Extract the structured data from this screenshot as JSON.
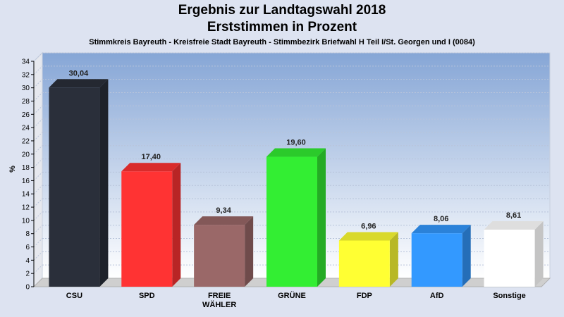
{
  "header": {
    "title_line1": "Ergebnis zur Landtagswahl 2018",
    "title_line2": "Erststimmen in Prozent",
    "subtitle": "Stimmkreis Bayreuth - Kreisfreie Stadt Bayreuth - Stimmbezirk Briefwahl H Teil I/St. Georgen und I (0084)"
  },
  "chart_data": {
    "type": "bar",
    "categories": [
      "CSU",
      "SPD",
      "FREIE WÄHLER",
      "GRÜNE",
      "FDP",
      "AfD",
      "Sonstige"
    ],
    "category_lines": [
      [
        "CSU"
      ],
      [
        "SPD"
      ],
      [
        "FREIE",
        "WÄHLER"
      ],
      [
        "GRÜNE"
      ],
      [
        "FDP"
      ],
      [
        "AfD"
      ],
      [
        "Sonstige"
      ]
    ],
    "values": [
      30.04,
      17.4,
      9.34,
      19.6,
      6.96,
      8.06,
      8.61
    ],
    "value_labels": [
      "30,04",
      "17,40",
      "9,34",
      "19,60",
      "6,96",
      "8,06",
      "8,61"
    ],
    "colors": [
      "#2a2f3a",
      "#ff3333",
      "#9a6868",
      "#33ee33",
      "#ffff33",
      "#3399ff",
      "#ffffff"
    ],
    "ylabel": "%",
    "ylim": [
      0,
      34
    ],
    "yticks": [
      0,
      2,
      4,
      6,
      8,
      10,
      12,
      14,
      16,
      18,
      20,
      22,
      24,
      26,
      28,
      30,
      32,
      34
    ],
    "grid": true,
    "legend": "none"
  }
}
